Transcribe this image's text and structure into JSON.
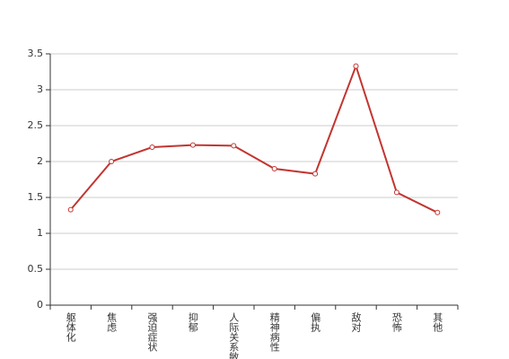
{
  "chart_data": {
    "type": "line",
    "categories": [
      "躯体化",
      "焦虑",
      "强迫症状",
      "抑郁",
      "人际关系敏感",
      "精神病性",
      "偏执",
      "敌对",
      "恐怖",
      "其他"
    ],
    "values": [
      1.33,
      2.0,
      2.2,
      2.23,
      2.22,
      1.9,
      1.83,
      3.33,
      1.57,
      1.29
    ],
    "color": "#c23531",
    "ylim": [
      0,
      3.5
    ],
    "yticks": [
      0,
      0.5,
      1,
      1.5,
      2,
      2.5,
      3,
      3.5
    ],
    "grid": true
  }
}
